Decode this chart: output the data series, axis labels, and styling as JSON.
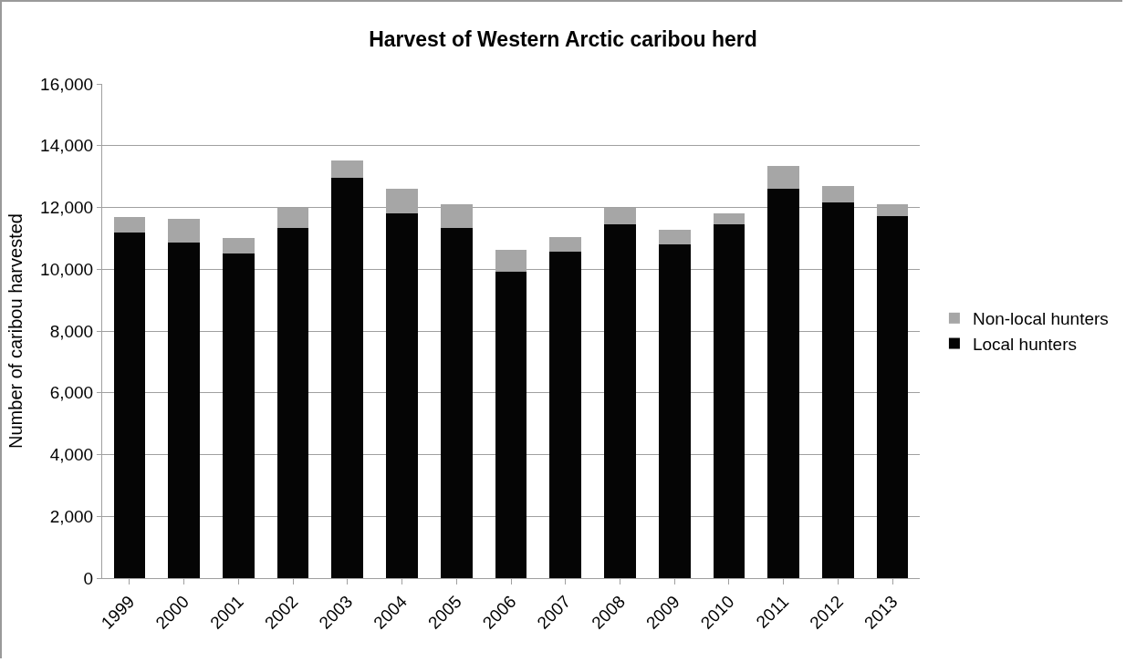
{
  "chart_data": {
    "type": "bar",
    "title": "Harvest of Western Arctic caribou herd",
    "ylabel": "Number of caribou harvested",
    "categories": [
      "1999",
      "2000",
      "2001",
      "2002",
      "2003",
      "2004",
      "2005",
      "2006",
      "2007",
      "2008",
      "2009",
      "2010",
      "2011",
      "2012",
      "2013"
    ],
    "stacked": true,
    "series": [
      {
        "name": "Local hunters",
        "color": "#050505",
        "values": [
          11180,
          10870,
          10520,
          11330,
          12960,
          11820,
          11330,
          9930,
          10570,
          11450,
          10790,
          11450,
          12620,
          12170,
          11720
        ]
      },
      {
        "name": "Non-local hunters",
        "color": "#a6a6a6",
        "values": [
          500,
          750,
          490,
          650,
          560,
          790,
          760,
          700,
          480,
          540,
          490,
          370,
          720,
          520,
          370
        ]
      }
    ],
    "ylim": [
      0,
      16000
    ],
    "yticks": [
      {
        "value": 0,
        "label": "0"
      },
      {
        "value": 2000,
        "label": "2,000"
      },
      {
        "value": 4000,
        "label": "4,000"
      },
      {
        "value": 6000,
        "label": "6,000"
      },
      {
        "value": 8000,
        "label": "8,000"
      },
      {
        "value": 10000,
        "label": "10,000"
      },
      {
        "value": 12000,
        "label": "12,000"
      },
      {
        "value": 14000,
        "label": "14,000"
      },
      {
        "value": 16000,
        "label": "16,000"
      }
    ],
    "grid": "y",
    "legend": "right"
  }
}
